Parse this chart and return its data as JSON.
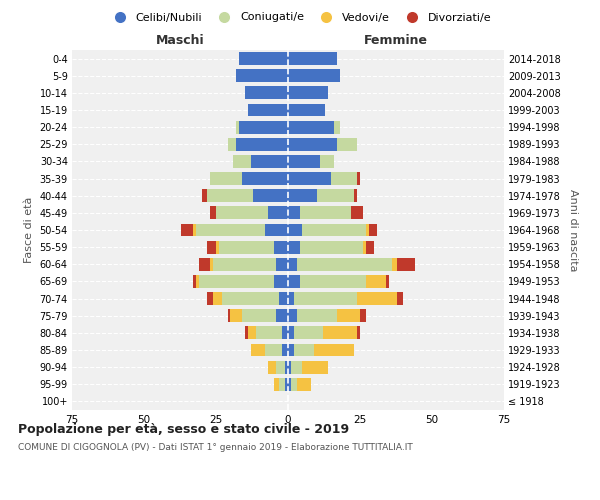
{
  "age_groups": [
    "100+",
    "95-99",
    "90-94",
    "85-89",
    "80-84",
    "75-79",
    "70-74",
    "65-69",
    "60-64",
    "55-59",
    "50-54",
    "45-49",
    "40-44",
    "35-39",
    "30-34",
    "25-29",
    "20-24",
    "15-19",
    "10-14",
    "5-9",
    "0-4"
  ],
  "birth_years": [
    "≤ 1918",
    "1919-1923",
    "1924-1928",
    "1929-1933",
    "1934-1938",
    "1939-1943",
    "1944-1948",
    "1949-1953",
    "1954-1958",
    "1959-1963",
    "1964-1968",
    "1969-1973",
    "1974-1978",
    "1979-1983",
    "1984-1988",
    "1989-1993",
    "1994-1998",
    "1999-2003",
    "2004-2008",
    "2009-2013",
    "2014-2018"
  ],
  "males": {
    "celibi": [
      0,
      1,
      1,
      2,
      2,
      4,
      3,
      5,
      4,
      5,
      8,
      7,
      12,
      16,
      13,
      18,
      17,
      14,
      15,
      18,
      17
    ],
    "coniugati": [
      0,
      2,
      3,
      6,
      9,
      12,
      20,
      26,
      22,
      19,
      24,
      18,
      16,
      11,
      6,
      3,
      1,
      0,
      0,
      0,
      0
    ],
    "vedovi": [
      0,
      2,
      3,
      5,
      3,
      4,
      3,
      1,
      1,
      1,
      1,
      0,
      0,
      0,
      0,
      0,
      0,
      0,
      0,
      0,
      0
    ],
    "divorziati": [
      0,
      0,
      0,
      0,
      1,
      1,
      2,
      1,
      4,
      3,
      4,
      2,
      2,
      0,
      0,
      0,
      0,
      0,
      0,
      0,
      0
    ]
  },
  "females": {
    "nubili": [
      0,
      1,
      1,
      2,
      2,
      3,
      2,
      4,
      3,
      4,
      5,
      4,
      10,
      15,
      11,
      17,
      16,
      13,
      14,
      18,
      17
    ],
    "coniugate": [
      0,
      2,
      4,
      7,
      10,
      14,
      22,
      23,
      33,
      22,
      22,
      18,
      13,
      9,
      5,
      7,
      2,
      0,
      0,
      0,
      0
    ],
    "vedove": [
      0,
      5,
      9,
      14,
      12,
      8,
      14,
      7,
      2,
      1,
      1,
      0,
      0,
      0,
      0,
      0,
      0,
      0,
      0,
      0,
      0
    ],
    "divorziate": [
      0,
      0,
      0,
      0,
      1,
      2,
      2,
      1,
      6,
      3,
      3,
      4,
      1,
      1,
      0,
      0,
      0,
      0,
      0,
      0,
      0
    ]
  },
  "colors": {
    "celibi": "#4472c4",
    "coniugati": "#c5d9a0",
    "vedovi": "#f5c242",
    "divorziati": "#c0392b"
  },
  "xlim": 75,
  "title": "Popolazione per età, sesso e stato civile - 2019",
  "subtitle": "COMUNE DI CIGOGNOLA (PV) - Dati ISTAT 1° gennaio 2019 - Elaborazione TUTTITALIA.IT",
  "ylabel": "Fasce di età",
  "ylabel_right": "Anni di nascita",
  "legend_labels": [
    "Celibi/Nubili",
    "Coniugati/e",
    "Vedovi/e",
    "Divorziati/e"
  ],
  "maschi_label": "Maschi",
  "femmine_label": "Femmine",
  "bg_color": "#f0f0f0"
}
